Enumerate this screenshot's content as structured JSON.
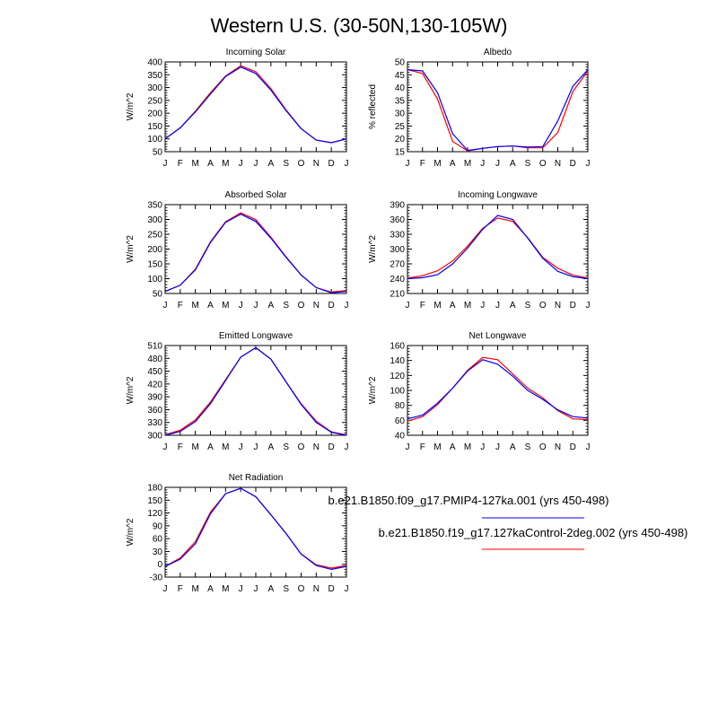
{
  "figure": {
    "title": "Western U.S. (30-50N,130-105W)"
  },
  "legend": {
    "entries": [
      {
        "label": "b.e21.B1850.f09_g17.PMIP4-127ka.001 (yrs 450-498)",
        "color": "#0000ff"
      },
      {
        "label": "b.e21.B1850.f19_g17.127kaControl-2deg.002 (yrs 450-498)",
        "color": "#ff0000"
      }
    ]
  },
  "chart_data": [
    {
      "type": "line",
      "title": "Incoming Solar",
      "ylabel": "W/m^2",
      "x": [
        "J",
        "F",
        "M",
        "A",
        "M",
        "J",
        "J",
        "A",
        "S",
        "O",
        "N",
        "D",
        "J"
      ],
      "ylim": [
        50,
        400
      ],
      "yticks": [
        50,
        100,
        150,
        200,
        250,
        300,
        350,
        400
      ],
      "series": [
        {
          "color": "#0000ff",
          "values": [
            100,
            143,
            205,
            275,
            343,
            380,
            355,
            290,
            210,
            140,
            95,
            85,
            100
          ]
        },
        {
          "color": "#ff0000",
          "values": [
            100,
            143,
            208,
            280,
            345,
            385,
            362,
            296,
            213,
            140,
            95,
            85,
            100
          ]
        }
      ]
    },
    {
      "type": "line",
      "title": "Albedo",
      "ylabel": "% reflected",
      "x": [
        "J",
        "F",
        "M",
        "A",
        "M",
        "J",
        "J",
        "A",
        "S",
        "O",
        "N",
        "D",
        "J"
      ],
      "ylim": [
        15,
        50
      ],
      "yticks": [
        15,
        20,
        25,
        30,
        35,
        40,
        45,
        50
      ],
      "series": [
        {
          "color": "#0000ff",
          "values": [
            47,
            46.5,
            38,
            22,
            15.5,
            16.3,
            17,
            17.2,
            16.8,
            17,
            27,
            40.5,
            47
          ]
        },
        {
          "color": "#ff0000",
          "values": [
            47,
            45.5,
            35.5,
            19,
            15.3,
            16.3,
            17,
            17.2,
            16.5,
            16.5,
            22.5,
            38.5,
            46.5
          ]
        }
      ]
    },
    {
      "type": "line",
      "title": "Absorbed Solar",
      "ylabel": "W/m^2",
      "x": [
        "J",
        "F",
        "M",
        "A",
        "M",
        "J",
        "J",
        "A",
        "S",
        "O",
        "N",
        "D",
        "J"
      ],
      "ylim": [
        50,
        350
      ],
      "yticks": [
        50,
        100,
        150,
        200,
        250,
        300,
        350
      ],
      "series": [
        {
          "color": "#0000ff",
          "values": [
            57,
            78,
            130,
            222,
            290,
            318,
            293,
            237,
            172,
            112,
            70,
            52,
            57
          ]
        },
        {
          "color": "#ff0000",
          "values": [
            57,
            78,
            132,
            225,
            292,
            322,
            299,
            240,
            174,
            113,
            70,
            55,
            60
          ]
        }
      ]
    },
    {
      "type": "line",
      "title": "Incoming Longwave",
      "ylabel": "W/m^2",
      "x": [
        "J",
        "F",
        "M",
        "A",
        "M",
        "J",
        "J",
        "A",
        "S",
        "O",
        "N",
        "D",
        "J"
      ],
      "ylim": [
        210,
        390
      ],
      "yticks": [
        210,
        240,
        270,
        300,
        330,
        360,
        390
      ],
      "series": [
        {
          "color": "#0000ff",
          "values": [
            240,
            242,
            248,
            270,
            302,
            340,
            368,
            360,
            322,
            281,
            255,
            244,
            240
          ]
        },
        {
          "color": "#ff0000",
          "values": [
            241,
            246,
            256,
            276,
            306,
            342,
            363,
            356,
            323,
            283,
            261,
            247,
            241
          ]
        }
      ]
    },
    {
      "type": "line",
      "title": "Emitted Longwave",
      "ylabel": "W/m^2",
      "x": [
        "J",
        "F",
        "M",
        "A",
        "M",
        "J",
        "J",
        "A",
        "S",
        "O",
        "N",
        "D",
        "J"
      ],
      "ylim": [
        300,
        510
      ],
      "yticks": [
        300,
        330,
        360,
        390,
        420,
        450,
        480,
        510
      ],
      "series": [
        {
          "color": "#0000ff",
          "values": [
            300,
            309,
            332,
            374,
            428,
            483,
            505,
            478,
            425,
            372,
            330,
            307,
            300
          ]
        },
        {
          "color": "#ff0000",
          "values": [
            301,
            312,
            336,
            378,
            430,
            483,
            505,
            478,
            425,
            374,
            333,
            308,
            301
          ]
        }
      ]
    },
    {
      "type": "line",
      "title": "Net Longwave",
      "ylabel": "W/m^2",
      "x": [
        "J",
        "F",
        "M",
        "A",
        "M",
        "J",
        "J",
        "A",
        "S",
        "O",
        "N",
        "D",
        "J"
      ],
      "ylim": [
        40,
        160
      ],
      "yticks": [
        40,
        60,
        80,
        100,
        120,
        140,
        160
      ],
      "series": [
        {
          "color": "#0000ff",
          "values": [
            62,
            67,
            83,
            103,
            126,
            141,
            135,
            119,
            100,
            88,
            74,
            65,
            63
          ]
        },
        {
          "color": "#ff0000",
          "values": [
            59,
            65,
            81,
            103,
            127,
            144,
            141,
            122,
            103,
            90,
            73,
            62,
            61
          ]
        }
      ]
    },
    {
      "type": "line",
      "title": "Net Radiation",
      "ylabel": "W/m^2",
      "x": [
        "J",
        "F",
        "M",
        "A",
        "M",
        "J",
        "J",
        "A",
        "S",
        "O",
        "N",
        "D",
        "J"
      ],
      "ylim": [
        -30,
        180
      ],
      "yticks": [
        -30,
        0,
        30,
        60,
        90,
        120,
        150,
        180
      ],
      "series": [
        {
          "color": "#0000ff",
          "values": [
            -5,
            12,
            48,
            118,
            165,
            178,
            158,
            116,
            72,
            24,
            -3,
            -12,
            -5
          ]
        },
        {
          "color": "#ff0000",
          "values": [
            -5,
            15,
            53,
            122,
            165,
            178,
            158,
            116,
            72,
            24,
            -1,
            -9,
            -3
          ]
        }
      ]
    }
  ]
}
